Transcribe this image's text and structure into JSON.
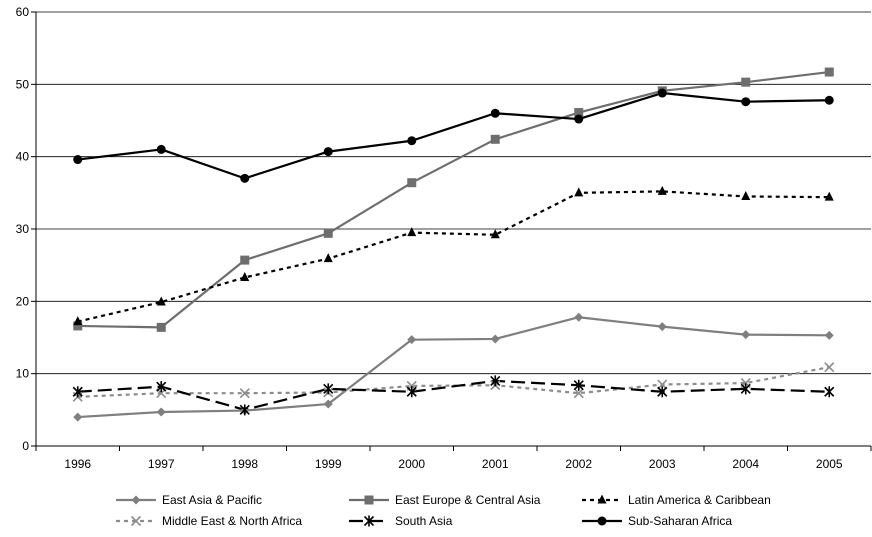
{
  "chart_data": {
    "type": "line",
    "title": "",
    "xlabel": "",
    "ylabel": "",
    "x": [
      "1996",
      "1997",
      "1998",
      "1999",
      "2000",
      "2001",
      "2002",
      "2003",
      "2004",
      "2005"
    ],
    "ylim": [
      0,
      60
    ],
    "yticks": [
      0,
      10,
      20,
      30,
      40,
      50,
      60
    ],
    "grid": "horizontal",
    "legend_position": "bottom",
    "series": [
      {
        "name": "East Asia & Pacific",
        "color": "#7f7f7f",
        "line_style": "solid",
        "marker": "diamond",
        "values": [
          4.0,
          4.7,
          4.9,
          5.8,
          14.7,
          14.8,
          17.8,
          16.5,
          15.4,
          15.3
        ]
      },
      {
        "name": "East Europe & Central Asia",
        "color": "#6e6e6e",
        "line_style": "solid",
        "marker": "square",
        "values": [
          16.6,
          16.4,
          25.7,
          29.4,
          36.4,
          42.4,
          46.1,
          49.1,
          50.3,
          51.7
        ]
      },
      {
        "name": "Latin America & Caribbean",
        "color": "#000000",
        "line_style": "dotted",
        "marker": "triangle",
        "values": [
          17.2,
          19.9,
          23.3,
          25.9,
          29.5,
          29.2,
          35.0,
          35.2,
          34.5,
          34.4
        ]
      },
      {
        "name": "Middle East & North Africa",
        "color": "#8c8c8c",
        "line_style": "dashed-light",
        "marker": "x",
        "values": [
          6.8,
          7.3,
          7.3,
          7.4,
          8.3,
          8.4,
          7.3,
          8.5,
          8.7,
          10.9
        ]
      },
      {
        "name": "South Asia",
        "color": "#000000",
        "line_style": "dashed",
        "marker": "star",
        "values": [
          7.5,
          8.2,
          5.0,
          7.9,
          7.5,
          9.0,
          8.4,
          7.5,
          7.9,
          7.5
        ]
      },
      {
        "name": "Sub-Saharan Africa",
        "color": "#000000",
        "line_style": "solid",
        "marker": "circle",
        "values": [
          39.6,
          41.0,
          37.0,
          40.7,
          42.2,
          46.0,
          45.2,
          48.8,
          47.6,
          47.8
        ]
      }
    ]
  }
}
